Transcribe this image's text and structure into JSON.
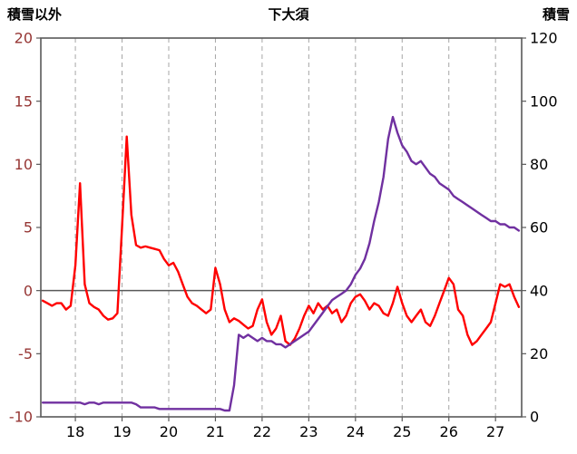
{
  "chart_data": {
    "type": "line",
    "title": "下大須",
    "left_axis": {
      "title": "積雪以外",
      "min": -10,
      "max": 20,
      "ticks": [
        20,
        15,
        10,
        5,
        0,
        -5,
        -10
      ],
      "tick_color": "#963634"
    },
    "right_axis": {
      "title": "積雪",
      "min": 0,
      "max": 120,
      "ticks": [
        120,
        100,
        80,
        60,
        40,
        20,
        0
      ],
      "tick_color": "#000000"
    },
    "x_axis": {
      "min": 17.26,
      "max": 27.56,
      "ticks": [
        18,
        19,
        20,
        21,
        22,
        23,
        24,
        25,
        26,
        27
      ],
      "tick_color": "#000000"
    },
    "grid": {
      "vertical": true,
      "horizontal": false,
      "color": "#a6a6a6",
      "zero_line": true
    },
    "border_color": "#595959",
    "x": [
      17.3,
      17.4,
      17.5,
      17.6,
      17.7,
      17.8,
      17.9,
      18.0,
      18.1,
      18.2,
      18.3,
      18.4,
      18.5,
      18.6,
      18.7,
      18.8,
      18.9,
      19.0,
      19.1,
      19.2,
      19.3,
      19.4,
      19.5,
      19.6,
      19.7,
      19.8,
      19.9,
      20.0,
      20.1,
      20.2,
      20.3,
      20.4,
      20.5,
      20.6,
      20.7,
      20.8,
      20.9,
      21.0,
      21.1,
      21.2,
      21.3,
      21.4,
      21.5,
      21.6,
      21.7,
      21.8,
      21.9,
      22.0,
      22.1,
      22.2,
      22.3,
      22.4,
      22.5,
      22.6,
      22.7,
      22.8,
      22.9,
      23.0,
      23.1,
      23.2,
      23.3,
      23.4,
      23.5,
      23.6,
      23.7,
      23.8,
      23.9,
      24.0,
      24.1,
      24.2,
      24.3,
      24.4,
      24.5,
      24.6,
      24.7,
      24.8,
      24.9,
      25.0,
      25.1,
      25.2,
      25.3,
      25.4,
      25.5,
      25.6,
      25.7,
      25.8,
      25.9,
      26.0,
      26.1,
      26.2,
      26.3,
      26.4,
      26.5,
      26.6,
      26.7,
      26.8,
      26.9,
      27.0,
      27.1,
      27.2,
      27.3,
      27.4,
      27.5
    ],
    "series": [
      {
        "name": "積雪以外",
        "axis": "left",
        "color": "#ff0000",
        "values": [
          -0.8,
          -1.0,
          -1.2,
          -1.0,
          -1.0,
          -1.5,
          -1.2,
          2.0,
          8.5,
          0.5,
          -1.0,
          -1.3,
          -1.5,
          -2.0,
          -2.3,
          -2.2,
          -1.8,
          5.0,
          12.2,
          6.0,
          3.6,
          3.4,
          3.5,
          3.4,
          3.3,
          3.2,
          2.5,
          2.0,
          2.2,
          1.5,
          0.5,
          -0.5,
          -1.0,
          -1.2,
          -1.5,
          -1.8,
          -1.5,
          1.8,
          0.5,
          -1.5,
          -2.5,
          -2.2,
          -2.4,
          -2.7,
          -3.0,
          -2.8,
          -1.5,
          -0.7,
          -2.5,
          -3.5,
          -3.0,
          -2.0,
          -4.0,
          -4.3,
          -3.8,
          -3.0,
          -2.0,
          -1.2,
          -1.8,
          -1.0,
          -1.5,
          -1.2,
          -1.8,
          -1.5,
          -2.5,
          -2.0,
          -1.0,
          -0.5,
          -0.3,
          -0.8,
          -1.5,
          -1.0,
          -1.2,
          -1.8,
          -2.0,
          -1.0,
          0.3,
          -1.0,
          -2.0,
          -2.5,
          -2.0,
          -1.5,
          -2.5,
          -2.8,
          -2.0,
          -1.0,
          0.0,
          1.0,
          0.5,
          -1.5,
          -2.0,
          -3.5,
          -4.3,
          -4.0,
          -3.5,
          -3.0,
          -2.5,
          -1.0,
          0.5,
          0.3,
          0.5,
          -0.5,
          -1.3
        ]
      },
      {
        "name": "積雪",
        "axis": "right",
        "color": "#7030a0",
        "values": [
          4.5,
          4.5,
          4.5,
          4.5,
          4.5,
          4.5,
          4.5,
          4.5,
          4.5,
          4.0,
          4.5,
          4.5,
          4.0,
          4.5,
          4.5,
          4.5,
          4.5,
          4.5,
          4.5,
          4.5,
          4.0,
          3.0,
          3.0,
          3.0,
          3.0,
          2.5,
          2.5,
          2.5,
          2.5,
          2.5,
          2.5,
          2.5,
          2.5,
          2.5,
          2.5,
          2.5,
          2.5,
          2.5,
          2.5,
          2.0,
          2.0,
          10,
          26,
          25,
          26,
          25,
          24,
          25,
          24,
          24,
          23,
          23,
          22,
          23,
          24,
          25,
          26,
          27,
          29,
          31,
          33,
          35,
          37,
          38,
          39,
          40,
          42,
          45,
          47,
          50,
          55,
          62,
          68,
          76,
          88,
          95,
          90,
          86,
          84,
          81,
          80,
          81,
          79,
          77,
          76,
          74,
          73,
          72,
          70,
          69,
          68,
          67,
          66,
          65,
          64,
          63,
          62,
          62,
          61,
          61,
          60,
          60,
          59
        ]
      }
    ]
  }
}
